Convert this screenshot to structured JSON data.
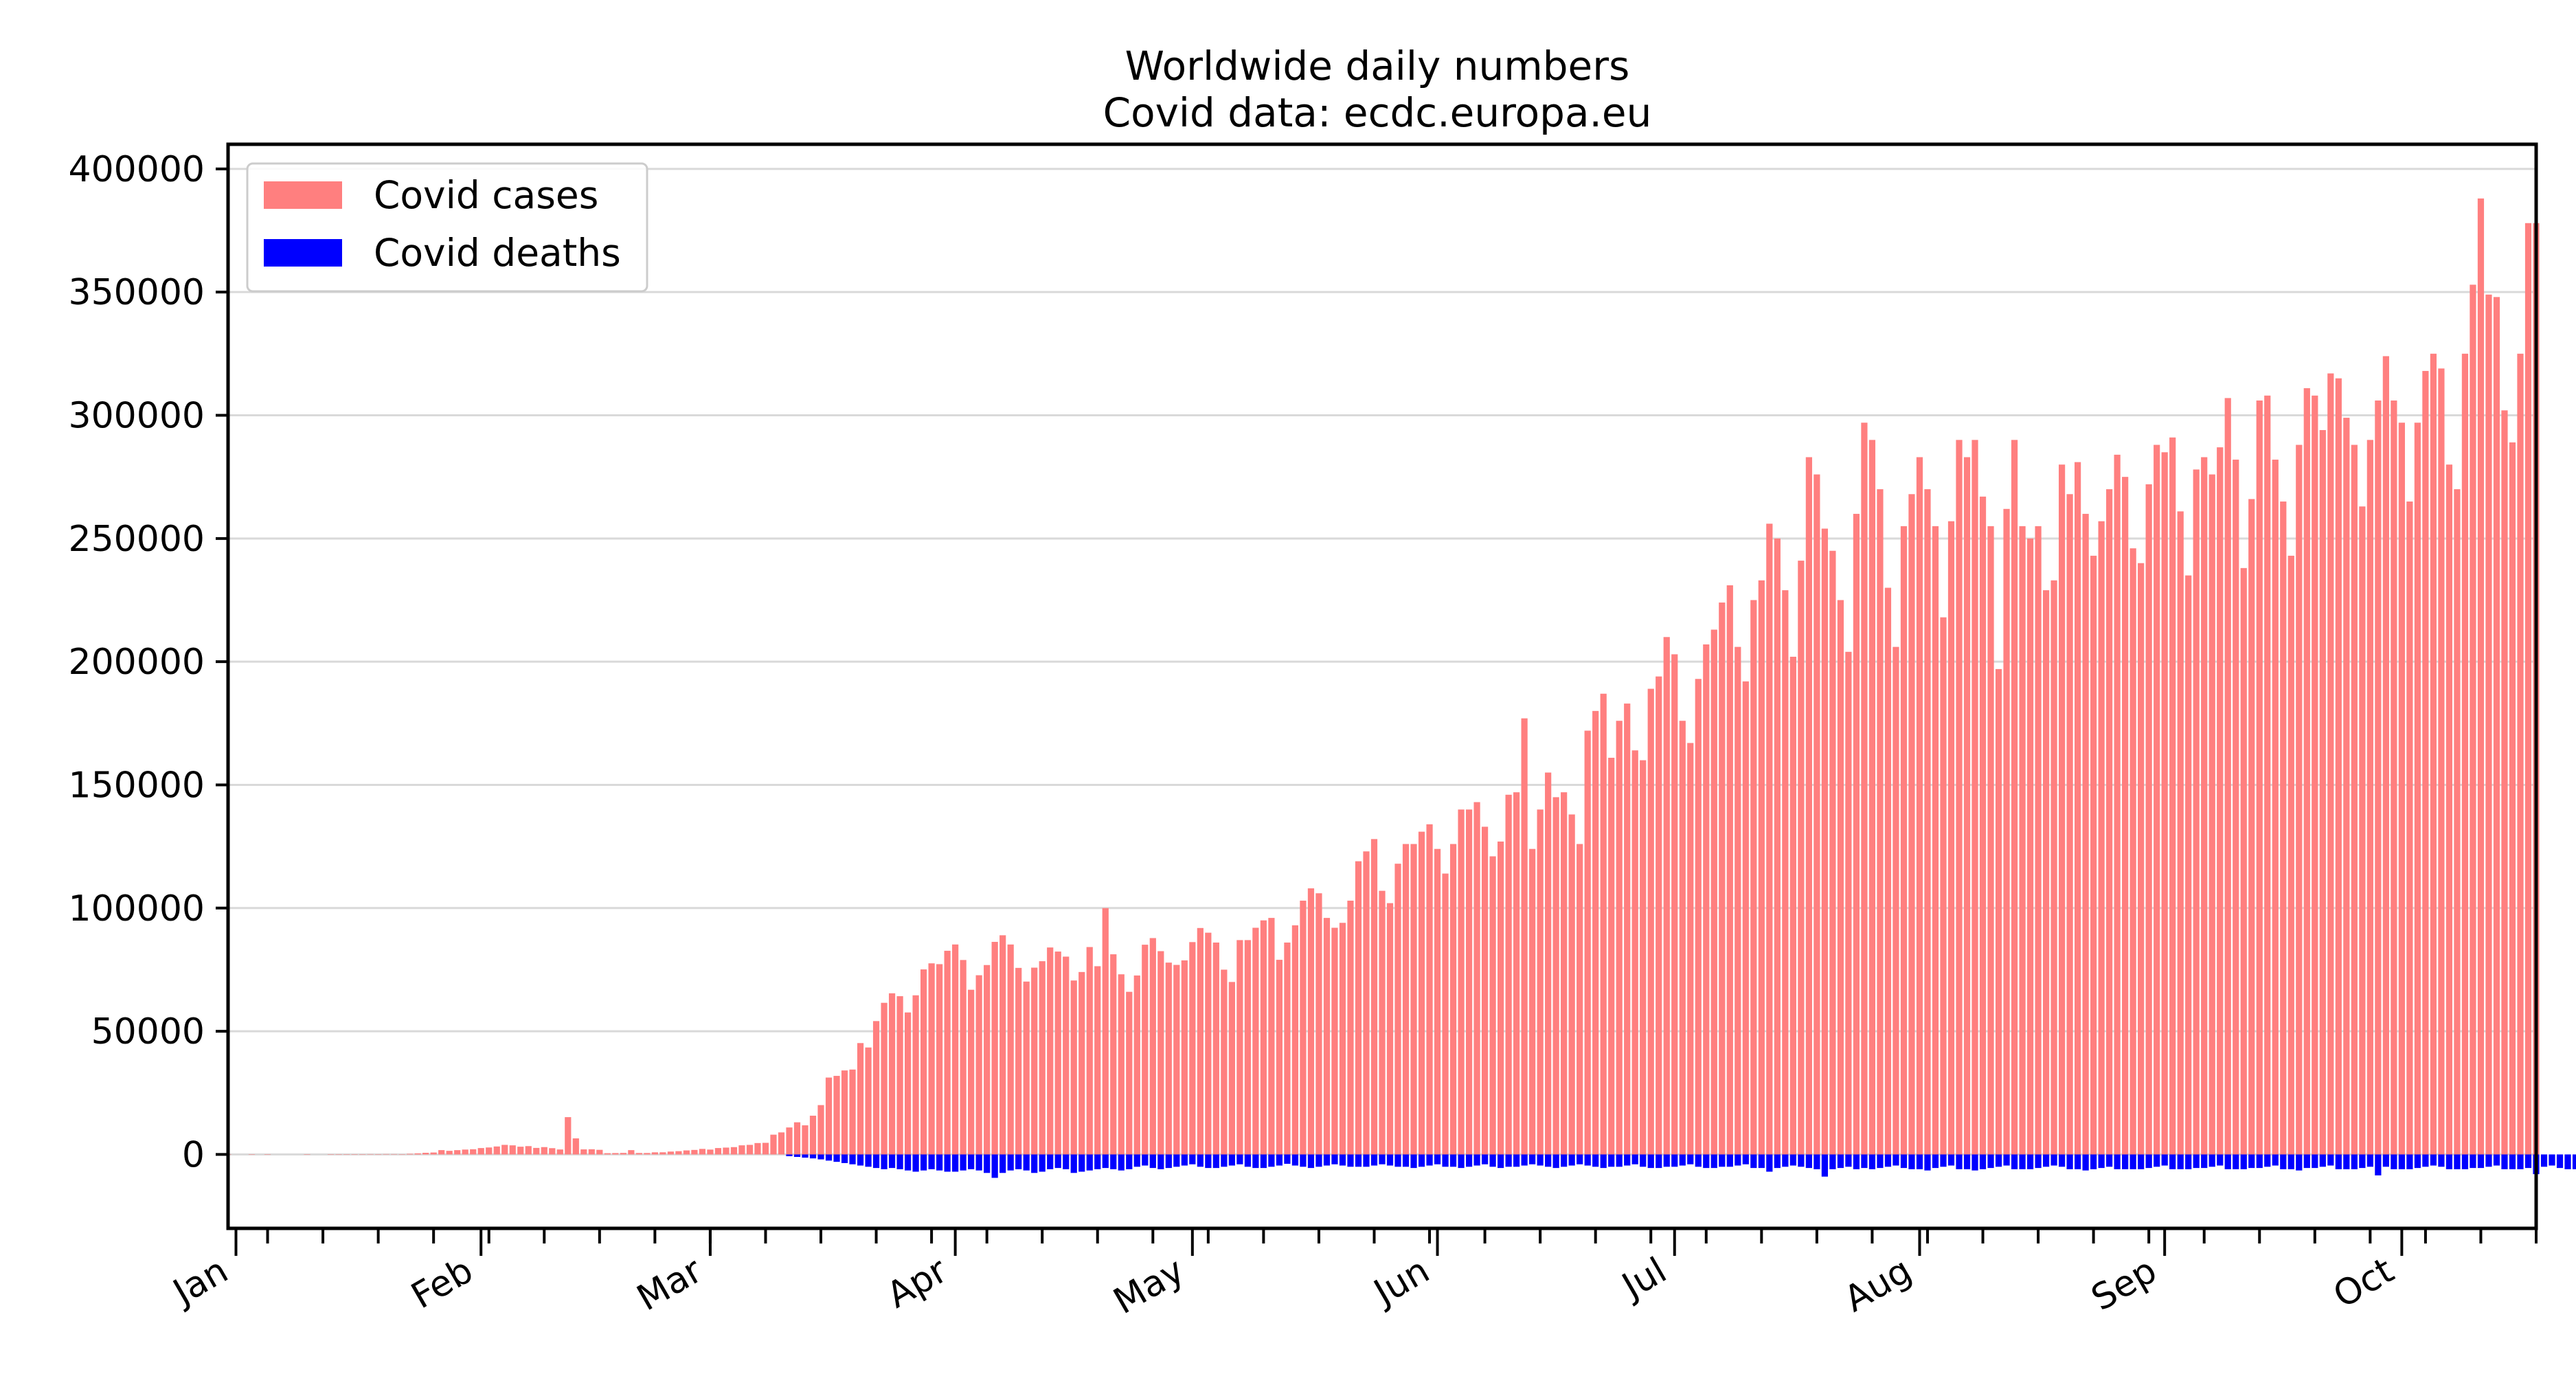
{
  "chart_data": {
    "type": "bar",
    "title": "Worldwide daily numbers",
    "subtitle": "Covid data: ecdc.europa.eu",
    "xlabel": "",
    "ylabel": "",
    "x_start": "2019-12-31",
    "x_end": "2020-10-18",
    "ylim": [
      -30000,
      410000
    ],
    "yticks": [
      0,
      50000,
      100000,
      150000,
      200000,
      250000,
      300000,
      350000,
      400000
    ],
    "month_ticks": [
      {
        "label": "Jan",
        "date": "2020-01-01"
      },
      {
        "label": "Feb",
        "date": "2020-02-01"
      },
      {
        "label": "Mar",
        "date": "2020-03-01"
      },
      {
        "label": "Apr",
        "date": "2020-04-01"
      },
      {
        "label": "May",
        "date": "2020-05-01"
      },
      {
        "label": "Jun",
        "date": "2020-06-01"
      },
      {
        "label": "Jul",
        "date": "2020-07-01"
      },
      {
        "label": "Aug",
        "date": "2020-08-01"
      },
      {
        "label": "Sep",
        "date": "2020-09-01"
      },
      {
        "label": "Oct",
        "date": "2020-10-01"
      }
    ],
    "grid": "horizontal",
    "legend_position": "top-left",
    "series": [
      {
        "name": "Covid cases",
        "color": "#ff7f7f",
        "start_date": "2019-12-31",
        "values": [
          27,
          0,
          0,
          17,
          0,
          15,
          0,
          0,
          0,
          0,
          1,
          0,
          0,
          1,
          1,
          4,
          4,
          17,
          136,
          20,
          151,
          140,
          97,
          259,
          441,
          665,
          787,
          1753,
          1466,
          1740,
          1980,
          2101,
          2590,
          2825,
          3235,
          3884,
          3694,
          3143,
          3385,
          2652,
          2984,
          2546,
          2015,
          15141,
          6518,
          2055,
          2100,
          1874,
          503,
          558,
          622,
          1752,
          592,
          589,
          855,
          872,
          1165,
          1324,
          1633,
          1832,
          2243,
          1978,
          2599,
          2780,
          2970,
          3702,
          3888,
          4625,
          4713,
          8028,
          8948,
          10953,
          13047,
          11816,
          15729,
          20028,
          31207,
          31887,
          34089,
          34456,
          45204,
          43412,
          54124,
          61543,
          65406,
          64228,
          57633,
          64589,
          75103,
          77566,
          77237,
          82665,
          85226,
          78917,
          66843,
          72736,
          76872,
          86279,
          88960,
          85215,
          75716,
          70163,
          75815,
          78432,
          84002,
          82345,
          80287,
          70598,
          74048,
          84179,
          76400,
          100000,
          81238,
          73114,
          66005,
          72633,
          85124,
          87817,
          82513,
          77858,
          76926,
          78765,
          86189,
          91904,
          89998,
          86000,
          75000,
          70000,
          87000,
          87000,
          92000,
          95000,
          96000,
          79000,
          86000,
          93000,
          103000,
          108000,
          106000,
          96000,
          92000,
          94000,
          103000,
          119000,
          123000,
          128000,
          107000,
          102000,
          118000,
          126000,
          126000,
          131000,
          134000,
          124000,
          114000,
          126000,
          140000,
          140000,
          143000,
          133000,
          121000,
          127000,
          146000,
          147000,
          177000,
          124000,
          140000,
          155000,
          145000,
          147000,
          138000,
          126000,
          172000,
          180000,
          187000,
          161000,
          176000,
          183000,
          164000,
          160000,
          189000,
          194000,
          210000,
          203000,
          176000,
          167000,
          193000,
          207000,
          213000,
          224000,
          231000,
          206000,
          192000,
          225000,
          233000,
          256000,
          250000,
          229000,
          202000,
          241000,
          283000,
          276000,
          254000,
          245000,
          225000,
          204000,
          260000,
          297000,
          290000,
          270000,
          230000,
          206000,
          255000,
          268000,
          283000,
          270000,
          255000,
          218000,
          257000,
          290000,
          283000,
          290000,
          267000,
          255000,
          197000,
          262000,
          290000,
          255000,
          250000,
          255000,
          229000,
          233000,
          280000,
          268000,
          281000,
          260000,
          243000,
          257000,
          270000,
          284000,
          275000,
          246000,
          240000,
          272000,
          288000,
          285000,
          291000,
          261000,
          235000,
          278000,
          283000,
          276000,
          287000,
          307000,
          282000,
          238000,
          266000,
          306000,
          308000,
          282000,
          265000,
          243000,
          288000,
          311000,
          308000,
          294000,
          317000,
          315000,
          299000,
          288000,
          263000,
          290000,
          306000,
          324000,
          306000,
          297000,
          265000,
          297000,
          318000,
          325000,
          319000,
          280000,
          270000,
          325000,
          353000,
          388000,
          349000,
          348000,
          302000,
          289000,
          325000,
          378000,
          378000
        ]
      },
      {
        "name": "Covid deaths",
        "color": "#0000ff",
        "start_date": "2020-03-11",
        "values": [
          -700,
          -1000,
          -1300,
          -1600,
          -2000,
          -2500,
          -3000,
          -3500,
          -4000,
          -4500,
          -5000,
          -5500,
          -6000,
          -5500,
          -6000,
          -6500,
          -7000,
          -6500,
          -6000,
          -6500,
          -7000,
          -7000,
          -6500,
          -6000,
          -6500,
          -7500,
          -9500,
          -7500,
          -6500,
          -6000,
          -6500,
          -7500,
          -7000,
          -6000,
          -5500,
          -6000,
          -7500,
          -7000,
          -6500,
          -6000,
          -5500,
          -6000,
          -6500,
          -6000,
          -5000,
          -4500,
          -5500,
          -6000,
          -5500,
          -5000,
          -4500,
          -4000,
          -5000,
          -5500,
          -5500,
          -5000,
          -4500,
          -4000,
          -5000,
          -5500,
          -5500,
          -5000,
          -4500,
          -3800,
          -4500,
          -5000,
          -5500,
          -5000,
          -4500,
          -4000,
          -4500,
          -5000,
          -5000,
          -5000,
          -4500,
          -4000,
          -4500,
          -5000,
          -5000,
          -5500,
          -5000,
          -4500,
          -4000,
          -5000,
          -5000,
          -5500,
          -5000,
          -4500,
          -4000,
          -5000,
          -5500,
          -5000,
          -5000,
          -4500,
          -4000,
          -4500,
          -5000,
          -5500,
          -5000,
          -4500,
          -4000,
          -4500,
          -5000,
          -5500,
          -5000,
          -5000,
          -4500,
          -4000,
          -5000,
          -5500,
          -5500,
          -5000,
          -5000,
          -4500,
          -4000,
          -5000,
          -5500,
          -5500,
          -5000,
          -5000,
          -4500,
          -4000,
          -5500,
          -5500,
          -7000,
          -5500,
          -5000,
          -4500,
          -5000,
          -5500,
          -6000,
          -9000,
          -6000,
          -5500,
          -5000,
          -6000,
          -5500,
          -6000,
          -5500,
          -5000,
          -4500,
          -5500,
          -6000,
          -6000,
          -6500,
          -5500,
          -5000,
          -4500,
          -6000,
          -6000,
          -6500,
          -6000,
          -5500,
          -5000,
          -4500,
          -6000,
          -6000,
          -6000,
          -5500,
          -5000,
          -4500,
          -5000,
          -6000,
          -6000,
          -6500,
          -6000,
          -5500,
          -5000,
          -6000,
          -6000,
          -6000,
          -6000,
          -5500,
          -5000,
          -4500,
          -6000,
          -6000,
          -6000,
          -5500,
          -5500,
          -5000,
          -4500,
          -6000,
          -6000,
          -6000,
          -5500,
          -5500,
          -5000,
          -4500,
          -6000,
          -6000,
          -6500,
          -5500,
          -5500,
          -5000,
          -4500,
          -6000,
          -6000,
          -6000,
          -5500,
          -5000,
          -8500,
          -5000,
          -6000,
          -6000,
          -6000,
          -5500,
          -5000,
          -4500,
          -5000,
          -6000,
          -6000,
          -6000,
          -5500,
          -5500,
          -5000,
          -4500,
          -6000,
          -6000,
          -6000,
          -5500,
          -8000,
          -5000,
          -4500,
          -5500,
          -6000,
          -6000,
          -5500,
          -5500,
          -5000,
          -4500
        ]
      }
    ]
  }
}
